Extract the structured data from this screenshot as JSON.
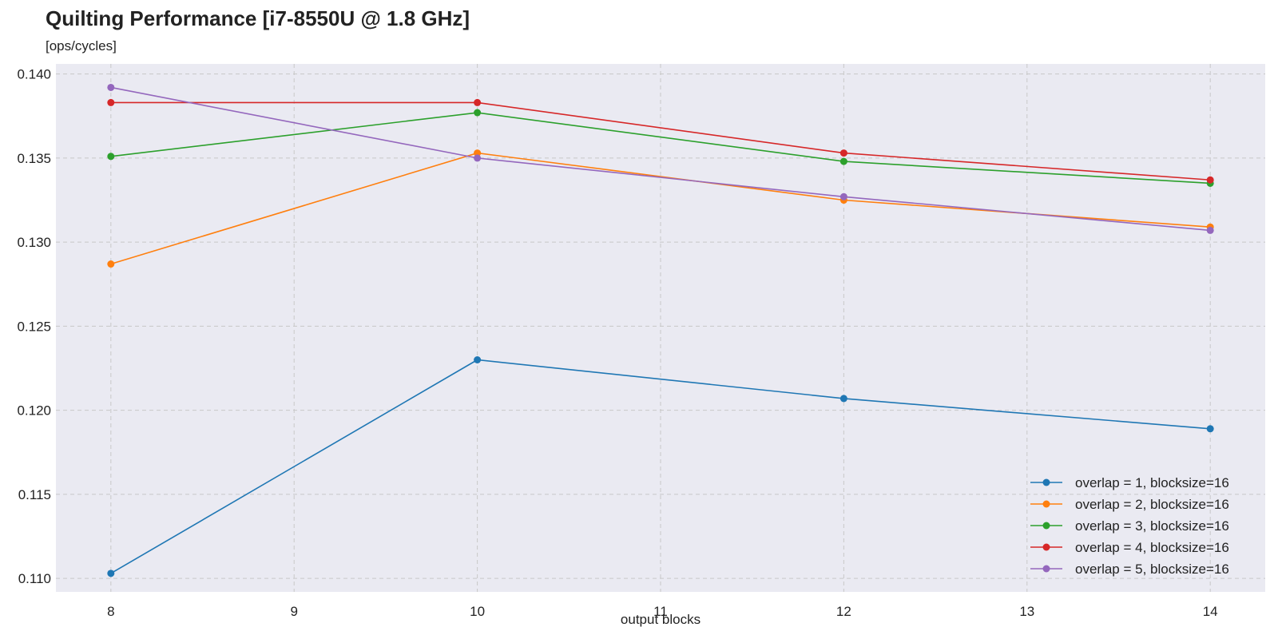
{
  "chart_data": {
    "type": "line",
    "title": "Quilting Performance [i7-8550U @ 1.8 GHz]",
    "subtitle": "[ops/cycles]",
    "xlabel": "output blocks",
    "ylabel": "",
    "x": [
      8,
      10,
      12,
      14
    ],
    "x_ticks": [
      "8",
      "9",
      "10",
      "11",
      "12",
      "13",
      "14"
    ],
    "y_ticks": [
      "0.110",
      "0.115",
      "0.120",
      "0.125",
      "0.130",
      "0.135",
      "0.140"
    ],
    "xlim": [
      7.7,
      14.3
    ],
    "ylim": [
      0.1092,
      0.1406
    ],
    "grid": true,
    "legend_position": "bottom-right",
    "background_color": "#eaeaf2",
    "series": [
      {
        "name": "overlap = 1, blocksize=16",
        "color": "#1f77b4",
        "values": [
          0.1103,
          0.123,
          0.1207,
          0.1189
        ]
      },
      {
        "name": "overlap = 2, blocksize=16",
        "color": "#ff7f0e",
        "values": [
          0.1287,
          0.1353,
          0.1325,
          0.1309
        ]
      },
      {
        "name": "overlap = 3, blocksize=16",
        "color": "#2ca02c",
        "values": [
          0.1351,
          0.1377,
          0.1348,
          0.1335
        ]
      },
      {
        "name": "overlap = 4, blocksize=16",
        "color": "#d62728",
        "values": [
          0.1383,
          0.1383,
          0.1353,
          0.1337
        ]
      },
      {
        "name": "overlap = 5, blocksize=16",
        "color": "#9467bd",
        "values": [
          0.1392,
          0.135,
          0.1327,
          0.1307
        ]
      }
    ]
  }
}
